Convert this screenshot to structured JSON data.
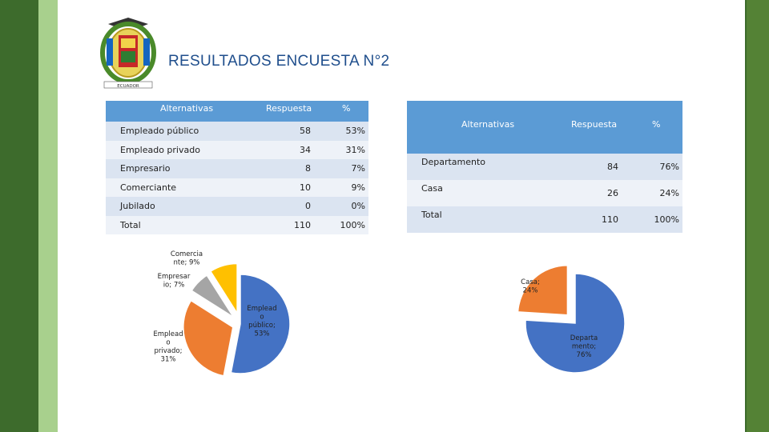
{
  "title": "RESULTADOS ENCUESTA N°2",
  "crest": {
    "text": "ECUADOR"
  },
  "colors": {
    "blue": "#4472c4",
    "orange": "#ed7d31",
    "gray": "#a5a5a5",
    "yellow": "#ffc000",
    "header": "#5b9bd5",
    "row_alt": "#dbe4f1"
  },
  "table1": {
    "headers": [
      "Alternativas",
      "Respuesta",
      "%"
    ],
    "rows": [
      [
        "Empleado público",
        "58",
        "53%"
      ],
      [
        "Empleado privado",
        "34",
        "31%"
      ],
      [
        "Empresario",
        "8",
        "7%"
      ],
      [
        "Comerciante",
        "10",
        "9%"
      ],
      [
        "Jubilado",
        "0",
        "0%"
      ],
      [
        "Total",
        "110",
        "100%"
      ]
    ]
  },
  "table2": {
    "headers": [
      "Alternativas",
      "Respuesta",
      "%"
    ],
    "rows": [
      [
        "Departamento",
        "84",
        "76%"
      ],
      [
        "Casa",
        "26",
        "24%"
      ],
      [
        "Total",
        "110",
        "100%"
      ]
    ]
  },
  "chart_data": [
    {
      "type": "pie",
      "slices": [
        {
          "name": "Empleado público",
          "value": 53,
          "label_lines": [
            "Emplead",
            "o",
            "público;",
            "53%"
          ]
        },
        {
          "name": "Empleado privado",
          "value": 31,
          "label_lines": [
            "Emplead",
            "o",
            "privado;",
            "31%"
          ]
        },
        {
          "name": "Empresario",
          "value": 7,
          "label_lines": [
            "Empresar",
            "io; 7%"
          ]
        },
        {
          "name": "Comerciante",
          "value": 9,
          "label_lines": [
            "Comercia",
            "nte; 9%"
          ]
        }
      ]
    },
    {
      "type": "pie",
      "slices": [
        {
          "name": "Departamento",
          "value": 76,
          "label_lines": [
            "Departa",
            "mento;",
            "76%"
          ]
        },
        {
          "name": "Casa",
          "value": 24,
          "label_lines": [
            "Casa;",
            "24%"
          ]
        }
      ]
    }
  ]
}
